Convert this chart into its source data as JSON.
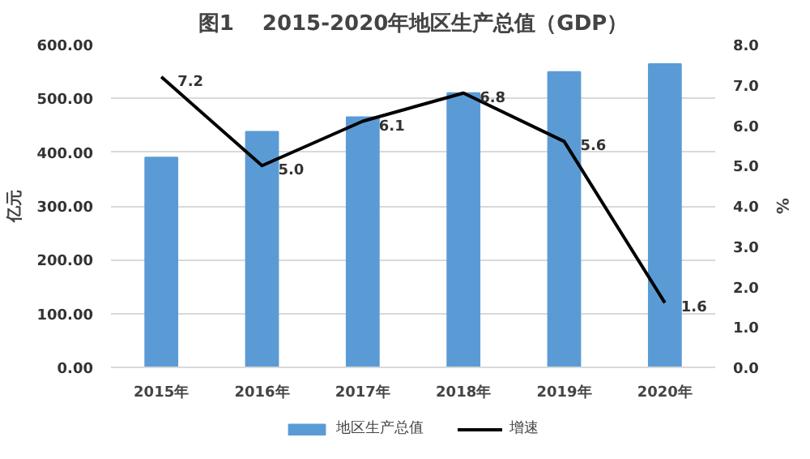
{
  "chart_data": {
    "type": "bar",
    "title": "图1　 2015-2020年地区生产总值（GDP）",
    "categories": [
      "2015年",
      "2016年",
      "2017年",
      "2018年",
      "2019年",
      "2020年"
    ],
    "series": [
      {
        "name": "地区生产总值",
        "color": "#5b9bd5",
        "values": [
          390,
          438,
          465,
          510,
          549,
          564
        ]
      },
      {
        "name": "增速",
        "type": "line",
        "axis": "y2",
        "color": "#000000",
        "values": [
          7.2,
          5.0,
          6.1,
          6.8,
          5.6,
          1.6
        ],
        "value_labels": [
          "7.2",
          "5.0",
          "6.1",
          "6.8",
          "5.6",
          "1.6"
        ]
      }
    ],
    "ylabel": "亿元",
    "y2label": "%",
    "ylim": [
      0,
      600
    ],
    "yticks": [
      {
        "value": 0,
        "label": "0.00"
      },
      {
        "value": 100,
        "label": "100.00"
      },
      {
        "value": 200,
        "label": "200.00"
      },
      {
        "value": 300,
        "label": "300.00"
      },
      {
        "value": 400,
        "label": "400.00"
      },
      {
        "value": 500,
        "label": "500.00"
      },
      {
        "value": 600,
        "label": "600.00"
      }
    ],
    "y2lim": [
      0,
      8
    ],
    "y2ticks": [
      {
        "value": 0,
        "label": "0.0"
      },
      {
        "value": 1,
        "label": "1.0"
      },
      {
        "value": 2,
        "label": "2.0"
      },
      {
        "value": 3,
        "label": "3.0"
      },
      {
        "value": 4,
        "label": "4.0"
      },
      {
        "value": 5,
        "label": "5.0"
      },
      {
        "value": 6,
        "label": "6.0"
      },
      {
        "value": 7,
        "label": "7.0"
      },
      {
        "value": 8,
        "label": "8.0"
      }
    ],
    "grid": "y",
    "legend": "bottom"
  }
}
